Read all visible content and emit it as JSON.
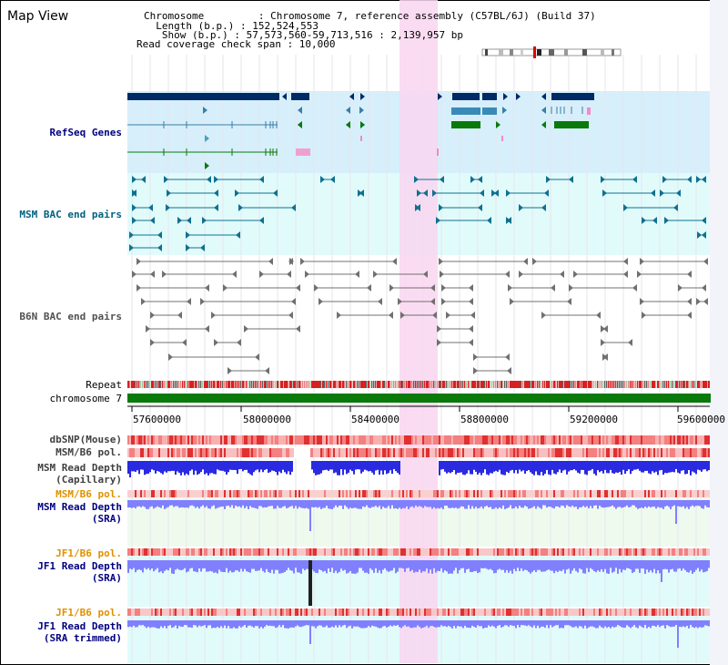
{
  "page": {
    "title": "Map View"
  },
  "header": {
    "chromosome": "Chromosome         : Chromosome 7, reference assembly (C57BL/6J) (Build 37)",
    "length": "  Length (b.p.) : 152,524,553",
    "show": "   Show (b.p.) : 57,573,560-59,713,516 : 2,139,957 bp",
    "coverage": "Read coverage check span : 10,000"
  },
  "tracks": {
    "refseq": "RefSeq Genes",
    "msm_bac": "MSM BAC end pairs",
    "b6n_bac": "B6N BAC end pairs",
    "repeat": "Repeat",
    "chrom": "chromosome 7",
    "dbsnp": "dbSNP(Mouse)",
    "msm_pol": "MSM/B6 pol.",
    "msm_read_cap_1": "MSM Read Depth",
    "msm_read_cap_2": "(Capillary)",
    "msm_pol2": "MSM/B6 pol.",
    "msm_read_sra_1": "MSM Read Depth",
    "msm_read_sra_2": "(SRA)",
    "jf1_pol": "JF1/B6 pol.",
    "jf1_read_sra_1": "JF1 Read Depth",
    "jf1_read_sra_2": "(SRA)",
    "jf1_pol2": "JF1/B6 pol.",
    "jf1_read_trim_1": "JF1 Read Depth",
    "jf1_read_trim_2": "(SRA trimmed)"
  },
  "axis": {
    "ticks": [
      "57600000",
      "58000000",
      "58400000",
      "58800000",
      "59200000",
      "59600000"
    ]
  },
  "colors": {
    "highlight": "#f9d6f0",
    "refseq_bg": "#d6effa",
    "msm_bac_bg": "#e1fbfb",
    "b6n_bac_bg": "#ffffff",
    "chrom_bar": "#0a7a0a",
    "depth_blue": "#2a2ae0",
    "depth_light": "#8080ff",
    "pol_label": "#e09000",
    "track_label": "#000080"
  }
}
